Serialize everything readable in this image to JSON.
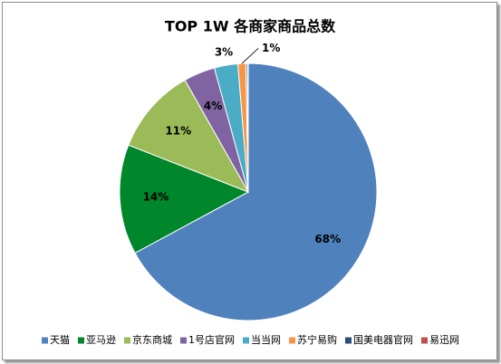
{
  "chart_data": {
    "type": "pie",
    "title": "TOP 1W 各商家商品总数",
    "categories": [
      "天猫",
      "亚马逊",
      "京东商城",
      "1号店官网",
      "当当网",
      "苏宁易购",
      "国美电器官网",
      "易迅网"
    ],
    "values": [
      68,
      14,
      11,
      4,
      3,
      1,
      0.2,
      0.1
    ],
    "value_labels": [
      "68%",
      "14%",
      "11%",
      "4%",
      "3%",
      "1%",
      null,
      null
    ],
    "colors": [
      "#4f81bd",
      "#00862b",
      "#9bbb59",
      "#8064a2",
      "#4bacc6",
      "#f79646",
      "#2c4d75",
      "#c0504d"
    ],
    "start_angle": 0,
    "direction": "clockwise",
    "legend": "bottom"
  }
}
